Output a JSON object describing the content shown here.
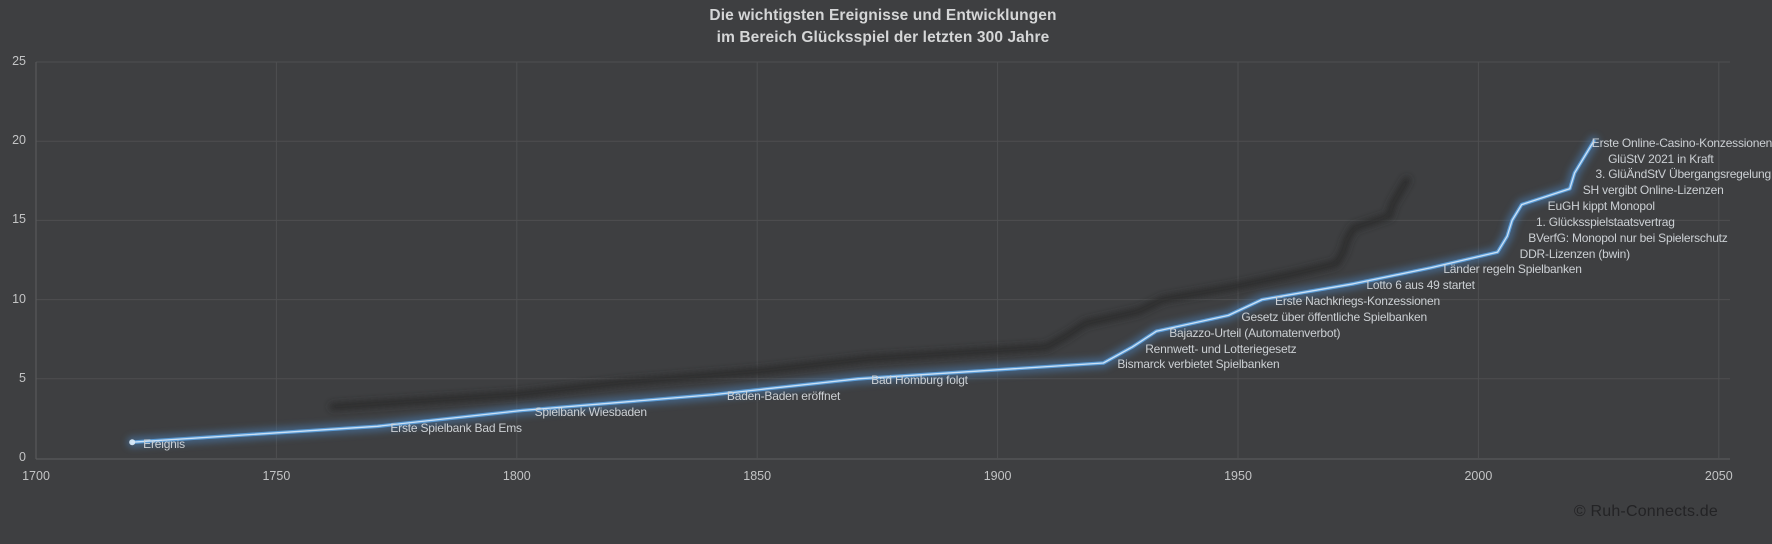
{
  "title": {
    "line1": "Die wichtigsten Ereignisse und Entwicklungen",
    "line2": "im Bereich Glücksspiel der letzten 300 Jahre"
  },
  "watermark": "© Ruh-Connects.de",
  "chart_data": {
    "type": "line",
    "title": "Die wichtigsten Ereignisse und Entwicklungen im Bereich Glücksspiel der letzten 300 Jahre",
    "xlabel": "",
    "ylabel": "",
    "xlim": [
      1700,
      2052
    ],
    "ylim": [
      0,
      25
    ],
    "x_ticks": [
      1700,
      1750,
      1800,
      1850,
      1900,
      1950,
      2000,
      2050
    ],
    "y_ticks": [
      0,
      5,
      10,
      15,
      20,
      25
    ],
    "grid": true,
    "legend_position": "none",
    "series": [
      {
        "name": "Ereignis",
        "points": [
          {
            "year": 1720,
            "value": 1,
            "label": "Ereignis",
            "dx": 11
          },
          {
            "year": 1771,
            "value": 2,
            "label": "Erste Spielbank Bad Ems",
            "dx": 13
          },
          {
            "year": 1801,
            "value": 3,
            "label": "Spielbank Wiesbaden",
            "dx": 13
          },
          {
            "year": 1841,
            "value": 4,
            "label": "Baden-Baden eröffnet",
            "dx": 13
          },
          {
            "year": 1871,
            "value": 5,
            "label": "Bad Homburg folgt",
            "dx": 13
          },
          {
            "year": 1922,
            "value": 6,
            "label": "Bismarck verbietet Spielbanken",
            "dx": 14
          },
          {
            "year": 1928,
            "value": 7,
            "label": "Rennwett- und Lotteriegesetz",
            "dx": 13
          },
          {
            "year": 1933,
            "value": 8,
            "label": "Bajazzo-Urteil (Automatenverbot)",
            "dx": 13
          },
          {
            "year": 1948,
            "value": 9,
            "label": "Gesetz über öffentliche Spielbanken",
            "dx": 13
          },
          {
            "year": 1955,
            "value": 10,
            "label": "Erste Nachkriegs-Konzessionen",
            "dx": 13
          },
          {
            "year": 1974,
            "value": 11,
            "label": "Lotto 6 aus 49 startet",
            "dx": 13
          },
          {
            "year": 1990,
            "value": 12,
            "label": "Länder regeln Spielbanken",
            "dx": 13
          },
          {
            "year": 2004,
            "value": 13,
            "label": "DDR-Lizenzen (bwin)",
            "dx": 22
          },
          {
            "year": 2006,
            "value": 14,
            "label": "BVerfG: Monopol nur bei Spielerschutz",
            "dx": 21
          },
          {
            "year": 2007,
            "value": 15,
            "label": "1. Glücksspielstaatsvertrag",
            "dx": 24
          },
          {
            "year": 2009,
            "value": 16,
            "label": "EuGH kippt Monopol",
            "dx": 26
          },
          {
            "year": 2019,
            "value": 17,
            "label": "SH vergibt Online-Lizenzen",
            "dx": 13
          },
          {
            "year": 2020,
            "value": 18,
            "label": "3. GlüÄndStV Übergangsregelung",
            "dx": 21
          },
          {
            "year": 2022,
            "value": 19,
            "label": "GlüStV 2021 in Kraft",
            "dx": 24
          },
          {
            "year": 2024,
            "value": 20,
            "label": "Erste Online-Casino-Konzessionen",
            "dx": -2
          }
        ]
      }
    ],
    "colors": {
      "background": "#3e3f41",
      "grid": "#4e4f51",
      "spine": "#58595b",
      "line_main": "#5b9bd5",
      "line_glow": "#4a7cb0",
      "line_core": "#d8e9f8",
      "shadow": "#292a2c",
      "event_label_text": "#ccd0d4",
      "tick_text": "#c3c4c5",
      "title_text": "#d5d6d7",
      "watermark_text": "#232325"
    }
  }
}
